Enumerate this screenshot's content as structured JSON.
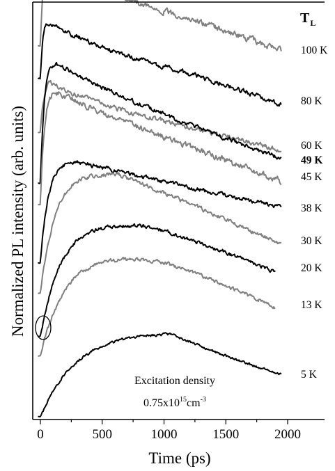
{
  "chart_data": {
    "type": "line",
    "xlabel": "Time (ps)",
    "ylabel": "Normalized PL intensity (arb. units)",
    "xlim": [
      -50,
      2150
    ],
    "x_ticks": [
      0,
      500,
      1000,
      1500,
      2000
    ],
    "y_ticks_labeled": false,
    "legend_title": {
      "main": "T",
      "sub": "L"
    },
    "annotation": {
      "line1": "Excitation density",
      "line2_main": "0.75x10",
      "line2_exp": "15",
      "line2_unit": "cm",
      "line2_unit_exp": "-3"
    },
    "curves": [
      {
        "label": "100 K",
        "color": "#808080",
        "bold": false,
        "rise": 20,
        "peak": 30,
        "mag": 110,
        "decay": 750,
        "tail": 0.4,
        "base": 0.52,
        "noise": 3.5
      },
      {
        "label": "80 K",
        "color": "#000000",
        "bold": false,
        "rise": 20,
        "peak": 40,
        "mag": 80,
        "decay": 500,
        "tail": 0.3,
        "base": 0.5,
        "noise": 2.8
      },
      {
        "label": "60 K",
        "color": "#808080",
        "bold": false,
        "rise": 25,
        "peak": 60,
        "mag": 70,
        "decay": 600,
        "tail": 0.2,
        "base": 0.5,
        "noise": 2.8
      },
      {
        "label": "49 K",
        "color": "#000000",
        "bold": true,
        "rise": 30,
        "peak": 80,
        "mag": 170,
        "decay": 1400,
        "tail": 0.2,
        "base": 0.5,
        "noise": 2.5
      },
      {
        "label": "45 K",
        "color": "#808080",
        "bold": false,
        "rise": 30,
        "peak": 100,
        "mag": 160,
        "decay": 1600,
        "tail": 0.2,
        "base": 0.5,
        "noise": 3.5
      },
      {
        "label": "38 K",
        "color": "#000000",
        "bold": false,
        "rise": 60,
        "peak": 300,
        "mag": 145,
        "decay": 2500,
        "tail": 0.3,
        "base": 0.5,
        "noise": 2.5
      },
      {
        "label": "30 K",
        "color": "#808080",
        "bold": false,
        "rise": 120,
        "peak": 640,
        "mag": 175,
        "decay": 2500,
        "tail": 0.2,
        "base": 0.5,
        "noise": 2.5
      },
      {
        "label": "20 K",
        "color": "#000000",
        "bold": false,
        "rise": 170,
        "peak": 900,
        "mag": 166,
        "decay": 3500,
        "tail": 0.2,
        "base": 0.5,
        "noise": 2.2
      },
      {
        "label": "13 K",
        "color": "#808080",
        "bold": false,
        "rise": 200,
        "peak": 1000,
        "mag": 150,
        "decay": 4000,
        "tail": 0.2,
        "base": 0.5,
        "noise": 2.2
      },
      {
        "label": "5 K",
        "color": "#000000",
        "bold": false,
        "rise": 300,
        "peak": 1050,
        "mag": 122,
        "decay": 1600,
        "tail": 0.0,
        "base": 0.5,
        "noise": 1.5
      }
    ]
  }
}
